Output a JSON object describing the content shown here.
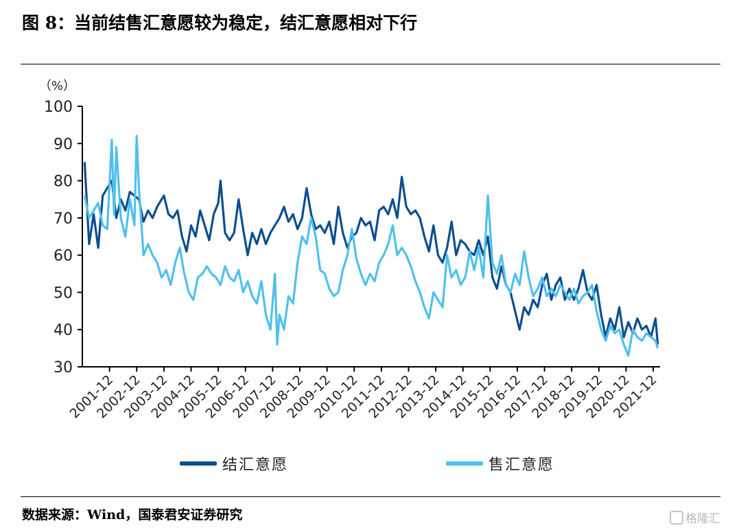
{
  "title": "图 8：当前结售汇意愿较为稳定，结汇意愿相对下行",
  "source": "数据来源：Wind，国泰君安证券研究",
  "watermark": "格隆汇",
  "colors": {
    "series_1": "#0c4e8e",
    "series_2": "#4fc0ec",
    "axis": "#000000"
  },
  "chart_data": {
    "type": "line",
    "unit_label": "（%）",
    "ylim": [
      30,
      100
    ],
    "yticks": [
      30,
      40,
      50,
      60,
      70,
      80,
      90,
      100
    ],
    "x_range": [
      "2000-12",
      "2022-03"
    ],
    "xticks": [
      "2001-12",
      "2002-12",
      "2003-12",
      "2004-12",
      "2005-12",
      "2006-12",
      "2007-12",
      "2008-12",
      "2009-12",
      "2010-12",
      "2011-12",
      "2012-12",
      "2013-12",
      "2014-12",
      "2015-12",
      "2016-12",
      "2017-12",
      "2018-12",
      "2019-12",
      "2020-12",
      "2021-12"
    ],
    "grid": false,
    "legend_position": "bottom",
    "series": [
      {
        "name": "结汇意愿",
        "color": "#0c4e8e",
        "points": [
          [
            "2001-01",
            85
          ],
          [
            "2001-03",
            63
          ],
          [
            "2001-05",
            71
          ],
          [
            "2001-07",
            62
          ],
          [
            "2001-09",
            76
          ],
          [
            "2002-01",
            80
          ],
          [
            "2002-03",
            70
          ],
          [
            "2002-05",
            75
          ],
          [
            "2002-07",
            72
          ],
          [
            "2002-09",
            77
          ],
          [
            "2003-01",
            75
          ],
          [
            "2003-03",
            69
          ],
          [
            "2003-05",
            72
          ],
          [
            "2003-07",
            70
          ],
          [
            "2003-09",
            73
          ],
          [
            "2003-12",
            76
          ],
          [
            "2004-02",
            71
          ],
          [
            "2004-04",
            70
          ],
          [
            "2004-06",
            72
          ],
          [
            "2004-08",
            65
          ],
          [
            "2004-10",
            61
          ],
          [
            "2004-12",
            68
          ],
          [
            "2005-02",
            65
          ],
          [
            "2005-04",
            72
          ],
          [
            "2005-06",
            68
          ],
          [
            "2005-08",
            64
          ],
          [
            "2005-10",
            71
          ],
          [
            "2005-12",
            74
          ],
          [
            "2006-01",
            80
          ],
          [
            "2006-03",
            66
          ],
          [
            "2006-05",
            64
          ],
          [
            "2006-07",
            66
          ],
          [
            "2006-09",
            75
          ],
          [
            "2006-11",
            67
          ],
          [
            "2007-01",
            60
          ],
          [
            "2007-03",
            66
          ],
          [
            "2007-05",
            63
          ],
          [
            "2007-07",
            67
          ],
          [
            "2007-09",
            63
          ],
          [
            "2007-11",
            66
          ],
          [
            "2008-01",
            68
          ],
          [
            "2008-03",
            70
          ],
          [
            "2008-05",
            73
          ],
          [
            "2008-07",
            69
          ],
          [
            "2008-09",
            71
          ],
          [
            "2008-11",
            67
          ],
          [
            "2009-01",
            70
          ],
          [
            "2009-03",
            78
          ],
          [
            "2009-05",
            71
          ],
          [
            "2009-07",
            67
          ],
          [
            "2009-09",
            68
          ],
          [
            "2009-11",
            66
          ],
          [
            "2010-01",
            69
          ],
          [
            "2010-03",
            63
          ],
          [
            "2010-05",
            73
          ],
          [
            "2010-07",
            66
          ],
          [
            "2010-09",
            62
          ],
          [
            "2010-11",
            65
          ],
          [
            "2011-01",
            66
          ],
          [
            "2011-03",
            70
          ],
          [
            "2011-05",
            68
          ],
          [
            "2011-07",
            69
          ],
          [
            "2011-09",
            64
          ],
          [
            "2011-11",
            72
          ],
          [
            "2012-01",
            73
          ],
          [
            "2012-03",
            71
          ],
          [
            "2012-05",
            75
          ],
          [
            "2012-07",
            70
          ],
          [
            "2012-09",
            81
          ],
          [
            "2012-11",
            73
          ],
          [
            "2013-01",
            71
          ],
          [
            "2013-03",
            72
          ],
          [
            "2013-05",
            70
          ],
          [
            "2013-07",
            65
          ],
          [
            "2013-09",
            61
          ],
          [
            "2013-11",
            68
          ],
          [
            "2014-01",
            60
          ],
          [
            "2014-03",
            58
          ],
          [
            "2014-05",
            62
          ],
          [
            "2014-07",
            69
          ],
          [
            "2014-09",
            60
          ],
          [
            "2014-11",
            64
          ],
          [
            "2015-01",
            63
          ],
          [
            "2015-03",
            61
          ],
          [
            "2015-05",
            60
          ],
          [
            "2015-07",
            64
          ],
          [
            "2015-09",
            60
          ],
          [
            "2015-11",
            65
          ],
          [
            "2016-01",
            54
          ],
          [
            "2016-03",
            51
          ],
          [
            "2016-05",
            57
          ],
          [
            "2016-07",
            52
          ],
          [
            "2016-09",
            50
          ],
          [
            "2016-11",
            45
          ],
          [
            "2017-01",
            40
          ],
          [
            "2017-03",
            46
          ],
          [
            "2017-05",
            44
          ],
          [
            "2017-07",
            48
          ],
          [
            "2017-09",
            46
          ],
          [
            "2017-11",
            52
          ],
          [
            "2018-01",
            55
          ],
          [
            "2018-03",
            48
          ],
          [
            "2018-05",
            52
          ],
          [
            "2018-07",
            54
          ],
          [
            "2018-09",
            48
          ],
          [
            "2018-11",
            51
          ],
          [
            "2019-01",
            48
          ],
          [
            "2019-03",
            51
          ],
          [
            "2019-05",
            56
          ],
          [
            "2019-07",
            50
          ],
          [
            "2019-09",
            48
          ],
          [
            "2019-11",
            52
          ],
          [
            "2020-01",
            44
          ],
          [
            "2020-03",
            38
          ],
          [
            "2020-05",
            43
          ],
          [
            "2020-07",
            40
          ],
          [
            "2020-09",
            46
          ],
          [
            "2020-11",
            38
          ],
          [
            "2021-01",
            42
          ],
          [
            "2021-03",
            39
          ],
          [
            "2021-05",
            43
          ],
          [
            "2021-07",
            40
          ],
          [
            "2021-09",
            41
          ],
          [
            "2021-11",
            38
          ],
          [
            "2022-01",
            43
          ],
          [
            "2022-02",
            36
          ]
        ]
      },
      {
        "name": "售汇意愿",
        "color": "#4fc0ec",
        "points": [
          [
            "2001-01",
            76
          ],
          [
            "2001-03",
            70
          ],
          [
            "2001-05",
            72
          ],
          [
            "2001-07",
            74
          ],
          [
            "2001-09",
            68
          ],
          [
            "2001-11",
            67
          ],
          [
            "2002-01",
            91
          ],
          [
            "2002-02",
            71
          ],
          [
            "2002-03",
            89
          ],
          [
            "2002-05",
            70
          ],
          [
            "2002-07",
            65
          ],
          [
            "2002-09",
            75
          ],
          [
            "2002-11",
            68
          ],
          [
            "2002-12",
            92
          ],
          [
            "2003-01",
            78
          ],
          [
            "2003-03",
            60
          ],
          [
            "2003-05",
            63
          ],
          [
            "2003-07",
            60
          ],
          [
            "2003-09",
            58
          ],
          [
            "2003-11",
            54
          ],
          [
            "2004-01",
            56
          ],
          [
            "2004-03",
            52
          ],
          [
            "2004-05",
            58
          ],
          [
            "2004-07",
            62
          ],
          [
            "2004-09",
            55
          ],
          [
            "2004-11",
            50
          ],
          [
            "2005-01",
            48
          ],
          [
            "2005-03",
            54
          ],
          [
            "2005-05",
            55
          ],
          [
            "2005-07",
            57
          ],
          [
            "2005-09",
            55
          ],
          [
            "2005-11",
            54
          ],
          [
            "2006-01",
            52
          ],
          [
            "2006-03",
            57
          ],
          [
            "2006-05",
            54
          ],
          [
            "2006-07",
            53
          ],
          [
            "2006-09",
            56
          ],
          [
            "2006-11",
            50
          ],
          [
            "2007-01",
            53
          ],
          [
            "2007-03",
            49
          ],
          [
            "2007-05",
            47
          ],
          [
            "2007-07",
            53
          ],
          [
            "2007-09",
            44
          ],
          [
            "2007-11",
            40
          ],
          [
            "2008-01",
            55
          ],
          [
            "2008-02",
            36
          ],
          [
            "2008-03",
            44
          ],
          [
            "2008-05",
            40
          ],
          [
            "2008-07",
            49
          ],
          [
            "2008-09",
            47
          ],
          [
            "2008-11",
            58
          ],
          [
            "2009-01",
            65
          ],
          [
            "2009-03",
            63
          ],
          [
            "2009-05",
            70
          ],
          [
            "2009-07",
            65
          ],
          [
            "2009-09",
            56
          ],
          [
            "2009-11",
            55
          ],
          [
            "2010-01",
            51
          ],
          [
            "2010-03",
            49
          ],
          [
            "2010-05",
            50
          ],
          [
            "2010-07",
            56
          ],
          [
            "2010-09",
            60
          ],
          [
            "2010-11",
            67
          ],
          [
            "2011-01",
            59
          ],
          [
            "2011-03",
            55
          ],
          [
            "2011-05",
            52
          ],
          [
            "2011-07",
            55
          ],
          [
            "2011-09",
            53
          ],
          [
            "2011-11",
            58
          ],
          [
            "2012-01",
            60
          ],
          [
            "2012-03",
            63
          ],
          [
            "2012-05",
            68
          ],
          [
            "2012-07",
            60
          ],
          [
            "2012-09",
            62
          ],
          [
            "2012-11",
            60
          ],
          [
            "2013-01",
            57
          ],
          [
            "2013-03",
            53
          ],
          [
            "2013-05",
            50
          ],
          [
            "2013-07",
            46
          ],
          [
            "2013-09",
            43
          ],
          [
            "2013-11",
            50
          ],
          [
            "2014-01",
            48
          ],
          [
            "2014-03",
            46
          ],
          [
            "2014-05",
            60
          ],
          [
            "2014-07",
            54
          ],
          [
            "2014-09",
            56
          ],
          [
            "2014-11",
            52
          ],
          [
            "2015-01",
            54
          ],
          [
            "2015-03",
            61
          ],
          [
            "2015-05",
            56
          ],
          [
            "2015-07",
            62
          ],
          [
            "2015-09",
            54
          ],
          [
            "2015-11",
            76
          ],
          [
            "2016-01",
            58
          ],
          [
            "2016-03",
            55
          ],
          [
            "2016-05",
            60
          ],
          [
            "2016-07",
            52
          ],
          [
            "2016-09",
            50
          ],
          [
            "2016-11",
            55
          ],
          [
            "2017-01",
            52
          ],
          [
            "2017-03",
            61
          ],
          [
            "2017-05",
            54
          ],
          [
            "2017-07",
            49
          ],
          [
            "2017-09",
            51
          ],
          [
            "2017-11",
            54
          ],
          [
            "2018-01",
            49
          ],
          [
            "2018-03",
            51
          ],
          [
            "2018-05",
            49
          ],
          [
            "2018-07",
            52
          ],
          [
            "2018-09",
            50
          ],
          [
            "2018-11",
            48
          ],
          [
            "2019-01",
            51
          ],
          [
            "2019-03",
            47
          ],
          [
            "2019-05",
            49
          ],
          [
            "2019-07",
            50
          ],
          [
            "2019-09",
            52
          ],
          [
            "2019-11",
            45
          ],
          [
            "2020-01",
            40
          ],
          [
            "2020-03",
            37
          ],
          [
            "2020-05",
            41
          ],
          [
            "2020-07",
            39
          ],
          [
            "2020-09",
            40
          ],
          [
            "2020-11",
            36
          ],
          [
            "2021-01",
            33
          ],
          [
            "2021-03",
            40
          ],
          [
            "2021-05",
            38
          ],
          [
            "2021-07",
            37
          ],
          [
            "2021-09",
            39
          ],
          [
            "2021-11",
            38
          ],
          [
            "2022-01",
            37
          ],
          [
            "2022-02",
            35
          ]
        ]
      }
    ]
  }
}
